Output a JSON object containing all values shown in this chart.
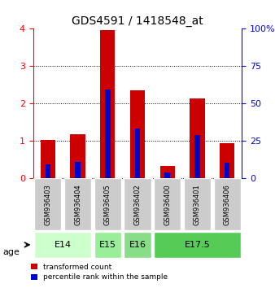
{
  "title": "GDS4591 / 1418548_at",
  "samples": [
    "GSM936403",
    "GSM936404",
    "GSM936405",
    "GSM936402",
    "GSM936400",
    "GSM936401",
    "GSM936406"
  ],
  "transformed_counts": [
    1.04,
    1.18,
    3.97,
    2.35,
    0.33,
    2.15,
    0.95
  ],
  "percentile_ranks": [
    0.38,
    0.44,
    2.37,
    1.33,
    0.17,
    1.17,
    0.42
  ],
  "age_groups": [
    {
      "label": "E14",
      "samples": [
        0,
        1
      ],
      "color": "#ccffcc"
    },
    {
      "label": "E15",
      "samples": [
        2
      ],
      "color": "#99ee99"
    },
    {
      "label": "E16",
      "samples": [
        3
      ],
      "color": "#88dd88"
    },
    {
      "label": "E17.5",
      "samples": [
        4,
        5,
        6
      ],
      "color": "#55cc55"
    }
  ],
  "bar_color_red": "#cc0000",
  "bar_color_blue": "#0000cc",
  "bar_width": 0.5,
  "ylim_left": [
    0,
    4
  ],
  "ylim_right": [
    0,
    100
  ],
  "yticks_left": [
    0,
    1,
    2,
    3,
    4
  ],
  "yticks_right": [
    0,
    25,
    50,
    75,
    100
  ],
  "grid_color": "#000000",
  "background_color": "#ffffff",
  "sample_bg_color": "#cccccc",
  "legend_red_label": "transformed count",
  "legend_blue_label": "percentile rank within the sample"
}
